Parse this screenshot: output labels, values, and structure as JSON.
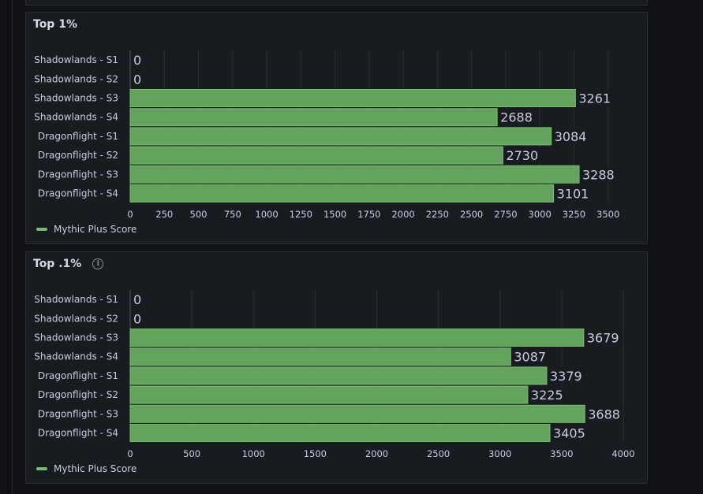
{
  "colors": {
    "bar_fill": "#64a35e",
    "bar_stroke": "#73bf69",
    "grid": "#2b2e35",
    "axis": "#5a5d66",
    "label_bg": "#181b1f"
  },
  "panels": [
    {
      "title": "Top 1%",
      "info_icon": false,
      "legend": "Mythic Plus Score"
    },
    {
      "title": "Top .1%",
      "info_icon": true,
      "legend": "Mythic Plus Score"
    }
  ],
  "chart_data": [
    {
      "type": "bar",
      "orientation": "horizontal",
      "title": "Top 1%",
      "categories": [
        "Shadowlands - S1",
        "Shadowlands - S2",
        "Shadowlands - S3",
        "Shadowlands - S4",
        "Dragonflight - S1",
        "Dragonflight - S2",
        "Dragonflight - S3",
        "Dragonflight - S4"
      ],
      "series": [
        {
          "name": "Mythic Plus Score",
          "values": [
            0,
            0,
            3261,
            2688,
            3084,
            2730,
            3288,
            3101
          ]
        }
      ],
      "xlim": [
        0,
        3600
      ],
      "xticks": [
        0,
        250,
        500,
        750,
        1000,
        1250,
        1500,
        1750,
        2000,
        2250,
        2500,
        2750,
        3000,
        3250,
        3500
      ],
      "grid": true,
      "legend": "bottom-left"
    },
    {
      "type": "bar",
      "orientation": "horizontal",
      "title": "Top .1%",
      "categories": [
        "Shadowlands - S1",
        "Shadowlands - S2",
        "Shadowlands - S3",
        "Shadowlands - S4",
        "Dragonflight - S1",
        "Dragonflight - S2",
        "Dragonflight - S3",
        "Dragonflight - S4"
      ],
      "series": [
        {
          "name": "Mythic Plus Score",
          "values": [
            0,
            0,
            3679,
            3087,
            3379,
            3225,
            3688,
            3405
          ]
        }
      ],
      "xlim": [
        0,
        4000
      ],
      "xticks": [
        0,
        500,
        1000,
        1500,
        2000,
        2500,
        3000,
        3500,
        4000
      ],
      "grid": true,
      "legend": "bottom-left"
    }
  ]
}
